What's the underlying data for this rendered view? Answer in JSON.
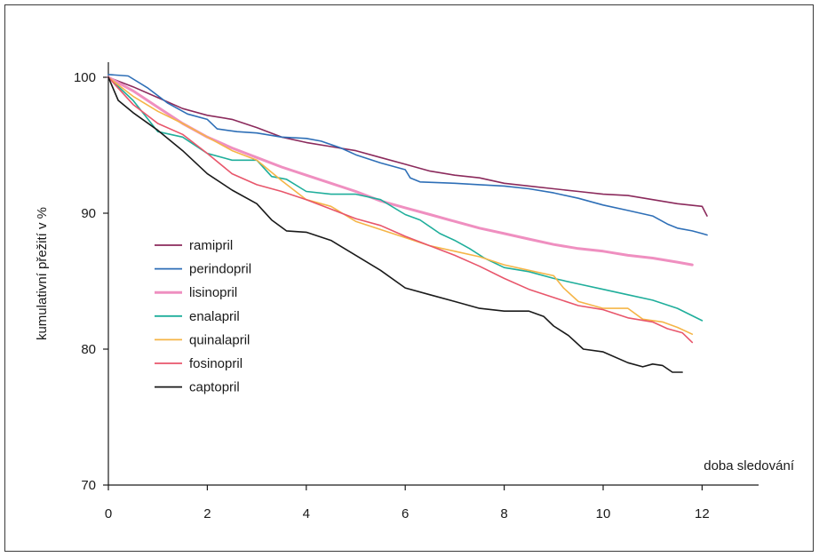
{
  "chart_data": {
    "type": "line",
    "title": "",
    "xlabel": "doba sledování",
    "ylabel": "kumulativní přežití v %",
    "xlim": [
      0,
      13
    ],
    "ylim": [
      70,
      100
    ],
    "xticks": [
      0,
      2,
      4,
      6,
      8,
      10,
      12
    ],
    "yticks": [
      70,
      80,
      90,
      100
    ],
    "grid": false,
    "legend_position": "left-center",
    "series": [
      {
        "name": "ramipril",
        "color": "#8b2a5c",
        "x": [
          0,
          0.5,
          1,
          1.5,
          2,
          2.5,
          3,
          3.5,
          4,
          4.5,
          5,
          5.5,
          6,
          6.5,
          7,
          7.5,
          8,
          8.5,
          9,
          9.5,
          10,
          10.5,
          11,
          11.5,
          12,
          12.1
        ],
        "y": [
          100,
          99.3,
          98.5,
          97.7,
          97.2,
          96.9,
          96.3,
          95.6,
          95.2,
          94.9,
          94.6,
          94.1,
          93.6,
          93.1,
          92.8,
          92.6,
          92.2,
          92.0,
          91.8,
          91.6,
          91.4,
          91.3,
          91.0,
          90.7,
          90.5,
          89.8
        ]
      },
      {
        "name": "perindopril",
        "color": "#2e6fb7",
        "x": [
          0,
          0.4,
          0.8,
          1.2,
          1.6,
          2,
          2.2,
          2.6,
          3,
          3.5,
          4,
          4.3,
          4.7,
          5,
          5.5,
          6,
          6.1,
          6.3,
          7,
          7.5,
          8,
          8.5,
          9,
          9.5,
          10,
          10.5,
          11,
          11.3,
          11.5,
          11.8,
          12,
          12.1
        ],
        "y": [
          100.2,
          100.1,
          99.2,
          98.1,
          97.3,
          96.9,
          96.2,
          96.0,
          95.9,
          95.6,
          95.5,
          95.3,
          94.8,
          94.3,
          93.7,
          93.2,
          92.6,
          92.3,
          92.2,
          92.1,
          92.0,
          91.8,
          91.5,
          91.1,
          90.6,
          90.2,
          89.8,
          89.2,
          88.9,
          88.7,
          88.5,
          88.4
        ]
      },
      {
        "name": "lisinopril",
        "color": "#ef8fc0",
        "x": [
          0,
          0.5,
          1,
          1.5,
          2,
          2.5,
          3,
          3.5,
          4,
          4.5,
          5,
          5.5,
          6,
          6.5,
          7,
          7.5,
          8,
          8.5,
          9,
          9.5,
          10,
          10.5,
          11,
          11.5,
          11.8
        ],
        "y": [
          100,
          99.0,
          97.8,
          96.6,
          95.6,
          94.8,
          94.1,
          93.4,
          92.8,
          92.2,
          91.6,
          90.9,
          90.4,
          89.9,
          89.4,
          88.9,
          88.5,
          88.1,
          87.7,
          87.4,
          87.2,
          86.9,
          86.7,
          86.4,
          86.2
        ]
      },
      {
        "name": "enalapril",
        "color": "#1fae9b",
        "x": [
          0,
          0.5,
          1,
          1.5,
          2,
          2.5,
          3,
          3.3,
          3.6,
          4,
          4.5,
          5,
          5.5,
          6,
          6.3,
          6.7,
          7,
          7.3,
          7.6,
          8,
          8.5,
          9,
          9.5,
          10,
          10.5,
          11,
          11.5,
          12
        ],
        "y": [
          100,
          98.3,
          96.0,
          95.6,
          94.4,
          93.9,
          93.9,
          92.7,
          92.5,
          91.6,
          91.4,
          91.4,
          91.0,
          89.9,
          89.5,
          88.5,
          88.0,
          87.4,
          86.7,
          86.0,
          85.7,
          85.2,
          84.8,
          84.4,
          84.0,
          83.6,
          83.0,
          82.1
        ]
      },
      {
        "name": "quinalapril",
        "color": "#f5b547",
        "x": [
          0,
          0.5,
          1,
          1.5,
          2,
          2.5,
          3,
          3.5,
          4,
          4.5,
          5,
          5.5,
          6,
          6.5,
          7,
          7.5,
          8,
          8.5,
          9,
          9.2,
          9.5,
          10,
          10.5,
          10.8,
          11.2,
          11.5,
          11.8
        ],
        "y": [
          100,
          98.6,
          97.5,
          96.6,
          95.6,
          94.6,
          93.9,
          92.4,
          91.0,
          90.5,
          89.4,
          88.8,
          88.2,
          87.6,
          87.2,
          86.8,
          86.2,
          85.8,
          85.4,
          84.5,
          83.5,
          83.0,
          83.0,
          82.2,
          82.0,
          81.6,
          81.1
        ]
      },
      {
        "name": "fosinopril",
        "color": "#e8566b",
        "x": [
          0,
          0.5,
          1,
          1.5,
          2,
          2.5,
          3,
          3.5,
          4,
          4.5,
          5,
          5.5,
          6,
          6.5,
          7,
          7.5,
          8,
          8.5,
          9,
          9.5,
          10,
          10.5,
          11,
          11.3,
          11.6,
          11.8
        ],
        "y": [
          100,
          98.0,
          96.6,
          95.8,
          94.4,
          92.9,
          92.1,
          91.6,
          91.0,
          90.3,
          89.6,
          89.1,
          88.3,
          87.6,
          86.9,
          86.1,
          85.2,
          84.4,
          83.8,
          83.2,
          82.9,
          82.3,
          82.0,
          81.5,
          81.2,
          80.5
        ]
      },
      {
        "name": "captopril",
        "color": "#1a1a1a",
        "x": [
          0,
          0.2,
          0.5,
          1,
          1.5,
          2,
          2.5,
          3,
          3.3,
          3.6,
          4,
          4.5,
          5,
          5.5,
          6,
          6.5,
          7,
          7.5,
          8,
          8.5,
          8.8,
          9,
          9.3,
          9.6,
          10,
          10.5,
          10.8,
          11,
          11.2,
          11.4,
          11.6
        ],
        "y": [
          100,
          98.3,
          97.4,
          96.1,
          94.6,
          92.9,
          91.7,
          90.7,
          89.5,
          88.7,
          88.6,
          88.0,
          86.9,
          85.8,
          84.5,
          84.0,
          83.5,
          83.0,
          82.8,
          82.8,
          82.4,
          81.7,
          81.0,
          80.0,
          79.8,
          79.0,
          78.7,
          78.9,
          78.8,
          78.3,
          78.3
        ]
      }
    ]
  }
}
